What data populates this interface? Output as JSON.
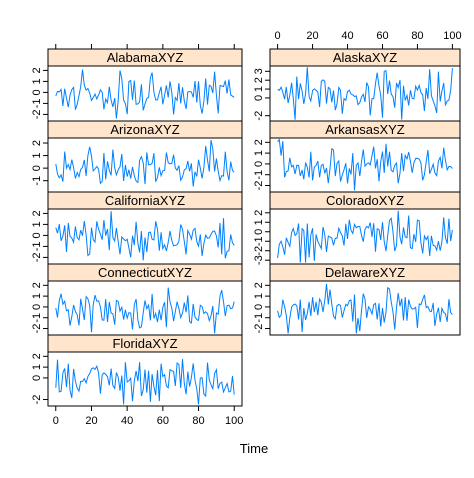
{
  "chart_data": {
    "type": "line",
    "xlabel": "Time",
    "xlim": [
      0,
      100
    ],
    "x_ticks": [
      0,
      20,
      40,
      60,
      80,
      100
    ],
    "line_color": "#0080ff",
    "strip_color": "#ffe5cc",
    "panels": [
      {
        "name": "AlabamaXYZ",
        "ylim": [
          -2.6,
          2.4
        ],
        "y_ticks": [
          -2,
          -1,
          0,
          1,
          2
        ],
        "y_tick_labels": [
          "-2",
          "-1",
          "0",
          "1",
          "2"
        ],
        "seed": 11
      },
      {
        "name": "ArizonaXYZ",
        "ylim": [
          -1.9,
          2.4
        ],
        "y_ticks": [
          -1,
          0,
          1,
          2
        ],
        "y_tick_labels": [
          "-1",
          "0",
          "1",
          "2"
        ],
        "seed": 23
      },
      {
        "name": "CaliforniaXYZ",
        "ylim": [
          -2.6,
          2.4
        ],
        "y_ticks": [
          -2,
          -1,
          0,
          1,
          2
        ],
        "y_tick_labels": [
          "-2",
          "-1",
          "0",
          "1",
          "2"
        ],
        "seed": 37
      },
      {
        "name": "ConnecticutXYZ",
        "ylim": [
          -2.6,
          2.4
        ],
        "y_ticks": [
          -2,
          -1,
          0,
          1,
          2
        ],
        "y_tick_labels": [
          "-2",
          "-1",
          "0",
          "1",
          "2"
        ],
        "seed": 41
      },
      {
        "name": "FloridaXYZ",
        "ylim": [
          -2.6,
          2.4
        ],
        "y_ticks": [
          -2,
          0,
          1,
          2
        ],
        "y_tick_labels": [
          "-2",
          "0",
          "1",
          "2"
        ],
        "seed": 53
      },
      {
        "name": "AlaskaXYZ",
        "ylim": [
          -2.6,
          3.6
        ],
        "y_ticks": [
          -2,
          0,
          1,
          2,
          3
        ],
        "y_tick_labels": [
          "-2",
          "0",
          "1",
          "2",
          "3"
        ],
        "seed": 67
      },
      {
        "name": "ArkansasXYZ",
        "ylim": [
          -2.6,
          2.4
        ],
        "y_ticks": [
          -2,
          -1,
          0,
          1,
          2
        ],
        "y_tick_labels": [
          "-2",
          "-1",
          "0",
          "1",
          "2"
        ],
        "seed": 71
      },
      {
        "name": "ColoradoXYZ",
        "ylim": [
          -3.4,
          2.4
        ],
        "y_ticks": [
          -3,
          -2,
          -1,
          0,
          1,
          2
        ],
        "y_tick_labels": [
          "-3",
          "-2",
          "-1",
          "0",
          "1",
          "2"
        ],
        "seed": 83
      },
      {
        "name": "DelawareXYZ",
        "ylim": [
          -2.6,
          2.4
        ],
        "y_ticks": [
          -2,
          -1,
          0,
          1,
          2
        ],
        "y_tick_labels": [
          "-2",
          "-1",
          "0",
          "1",
          "2"
        ],
        "seed": 97
      }
    ]
  }
}
